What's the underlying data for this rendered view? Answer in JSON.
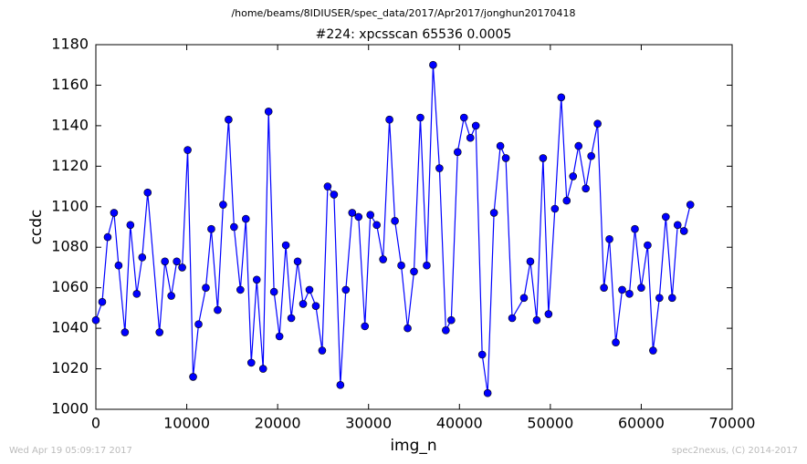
{
  "chart_data": {
    "type": "line",
    "suptitle": "/home/beams/8IDIUSER/spec_data/2017/Apr2017/jonghun20170418",
    "title": "#224: xpcsscan 65536 0.0005",
    "xlabel": "img_n",
    "ylabel": "ccdc",
    "footer_left": "Wed Apr 19 05:09:17 2017",
    "footer_right": "spec2nexus, (C) 2014-2017",
    "xlim": [
      0,
      70000
    ],
    "xticks": [
      0,
      10000,
      20000,
      30000,
      40000,
      50000,
      60000,
      70000
    ],
    "ylim": [
      1000,
      1180
    ],
    "yticks": [
      1000,
      1020,
      1040,
      1060,
      1080,
      1100,
      1120,
      1140,
      1160,
      1180
    ],
    "x": [
      0,
      700,
      1300,
      2000,
      2500,
      3200,
      3800,
      4500,
      5100,
      5700,
      7000,
      7600,
      8300,
      8900,
      9500,
      10100,
      10700,
      11300,
      12100,
      12700,
      13400,
      14000,
      14600,
      15200,
      15900,
      16500,
      17100,
      17700,
      18400,
      19000,
      19600,
      20200,
      20900,
      21500,
      22200,
      22800,
      23500,
      24200,
      24900,
      25500,
      26200,
      26900,
      27500,
      28200,
      28900,
      29600,
      30200,
      30900,
      31600,
      32300,
      32900,
      33600,
      34300,
      35000,
      35700,
      36400,
      37100,
      37800,
      38500,
      39100,
      39800,
      40500,
      41200,
      41800,
      42500,
      43100,
      43800,
      44500,
      45100,
      45800,
      47100,
      47800,
      48500,
      49200,
      49800,
      50500,
      51200,
      51800,
      52500,
      53100,
      53900,
      54500,
      55200,
      55900,
      56500,
      57200,
      57900,
      58700,
      59300,
      60000,
      60700,
      61300,
      62000,
      62700,
      63400,
      64000,
      64700,
      65400
    ],
    "series": [
      {
        "color": "#0000ff",
        "values": [
          1044,
          1053,
          1085,
          1097,
          1071,
          1038,
          1091,
          1057,
          1075,
          1107,
          1038,
          1073,
          1056,
          1073,
          1070,
          1128,
          1016,
          1042,
          1060,
          1089,
          1049,
          1101,
          1143,
          1090,
          1059,
          1094,
          1023,
          1064,
          1020,
          1147,
          1058,
          1036,
          1081,
          1045,
          1073,
          1052,
          1059,
          1051,
          1029,
          1110,
          1106,
          1012,
          1059,
          1097,
          1095,
          1041,
          1096,
          1091,
          1074,
          1143,
          1093,
          1071,
          1040,
          1068,
          1144,
          1071,
          1170,
          1119,
          1039,
          1044,
          1127,
          1144,
          1134,
          1140,
          1027,
          1008,
          1097,
          1130,
          1124,
          1045,
          1055,
          1073,
          1044,
          1124,
          1047,
          1099,
          1154,
          1103,
          1115,
          1130,
          1109,
          1125,
          1141,
          1060,
          1084,
          1033,
          1059,
          1057,
          1089,
          1060,
          1081,
          1029,
          1055,
          1095,
          1055,
          1091,
          1088,
          1101
        ]
      }
    ]
  }
}
